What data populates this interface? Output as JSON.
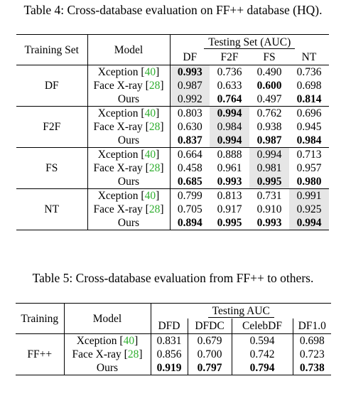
{
  "table4": {
    "caption": "Table 4: Cross-database evaluation on FF++ database (HQ).",
    "header": {
      "training_set": "Training Set",
      "model": "Model",
      "testing_group": "Testing Set (AUC)",
      "columns": [
        "DF",
        "F2F",
        "FS",
        "NT"
      ]
    },
    "groups": [
      {
        "train": "DF",
        "highlight_col": 0,
        "rows": [
          {
            "model": "Xception",
            "ref": "40",
            "values": [
              "0.993",
              "0.736",
              "0.490",
              "0.736"
            ],
            "bold": [
              true,
              false,
              false,
              false
            ]
          },
          {
            "model": "Face X-ray",
            "ref": "28",
            "values": [
              "0.987",
              "0.633",
              "0.600",
              "0.698"
            ],
            "bold": [
              false,
              false,
              true,
              false
            ]
          },
          {
            "model": "Ours",
            "ref": "",
            "values": [
              "0.992",
              "0.764",
              "0.497",
              "0.814"
            ],
            "bold": [
              false,
              true,
              false,
              true
            ]
          }
        ]
      },
      {
        "train": "F2F",
        "highlight_col": 1,
        "rows": [
          {
            "model": "Xception",
            "ref": "40",
            "values": [
              "0.803",
              "0.994",
              "0.762",
              "0.696"
            ],
            "bold": [
              false,
              true,
              false,
              false
            ]
          },
          {
            "model": "Face X-ray",
            "ref": "28",
            "values": [
              "0.630",
              "0.984",
              "0.938",
              "0.945"
            ],
            "bold": [
              false,
              false,
              false,
              false
            ]
          },
          {
            "model": "Ours",
            "ref": "",
            "values": [
              "0.837",
              "0.994",
              "0.987",
              "0.984"
            ],
            "bold": [
              true,
              true,
              true,
              true
            ]
          }
        ]
      },
      {
        "train": "FS",
        "highlight_col": 2,
        "rows": [
          {
            "model": "Xception",
            "ref": "40",
            "values": [
              "0.664",
              "0.888",
              "0.994",
              "0.713"
            ],
            "bold": [
              false,
              false,
              false,
              false
            ]
          },
          {
            "model": "Face X-ray",
            "ref": "28",
            "values": [
              "0.458",
              "0.961",
              "0.981",
              "0.957"
            ],
            "bold": [
              false,
              false,
              false,
              false
            ]
          },
          {
            "model": "Ours",
            "ref": "",
            "values": [
              "0.685",
              "0.993",
              "0.995",
              "0.980"
            ],
            "bold": [
              true,
              true,
              true,
              true
            ]
          }
        ]
      },
      {
        "train": "NT",
        "highlight_col": 3,
        "rows": [
          {
            "model": "Xception",
            "ref": "40",
            "values": [
              "0.799",
              "0.813",
              "0.731",
              "0.991"
            ],
            "bold": [
              false,
              false,
              false,
              false
            ]
          },
          {
            "model": "Face X-ray",
            "ref": "28",
            "values": [
              "0.705",
              "0.917",
              "0.910",
              "0.925"
            ],
            "bold": [
              false,
              false,
              false,
              false
            ]
          },
          {
            "model": "Ours",
            "ref": "",
            "values": [
              "0.894",
              "0.995",
              "0.993",
              "0.994"
            ],
            "bold": [
              true,
              true,
              true,
              true
            ]
          }
        ]
      }
    ]
  },
  "table5": {
    "caption": "Table 5: Cross-database evaluation from FF++ to others.",
    "header": {
      "training": "Training",
      "model": "Model",
      "testing_group": "Testing AUC",
      "columns": [
        "DFD",
        "DFDC",
        "CelebDF",
        "DF1.0"
      ]
    },
    "train": "FF++",
    "rows": [
      {
        "model": "Xception",
        "ref": "40",
        "values": [
          "0.831",
          "0.679",
          "0.594",
          "0.698"
        ],
        "bold": [
          false,
          false,
          false,
          false
        ]
      },
      {
        "model": "Face X-ray",
        "ref": "28",
        "values": [
          "0.856",
          "0.700",
          "0.742",
          "0.723"
        ],
        "bold": [
          false,
          false,
          false,
          false
        ]
      },
      {
        "model": "Ours",
        "ref": "",
        "values": [
          "0.919",
          "0.797",
          "0.794",
          "0.738"
        ],
        "bold": [
          true,
          true,
          true,
          true
        ]
      }
    ]
  },
  "colors": {
    "highlight": "#e6e6e6",
    "citation": "#2fae2f"
  }
}
